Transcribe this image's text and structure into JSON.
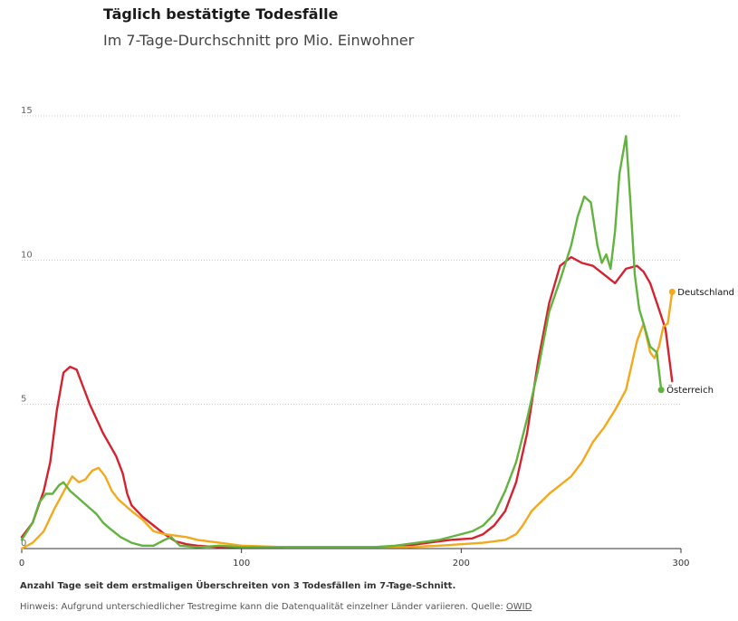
{
  "title": "Täglich bestätigte Todesfälle",
  "subtitle": "Im 7-Tage-Durchschnitt pro Mio. Einwohner",
  "footer": {
    "xlabel": "Anzahl Tage seit dem erstmaligen Überschreiten von 3 Todesfällen im 7-Tage-Schnitt.",
    "note": "Hinweis: Aufgrund unterschiedlicher Testregime kann die Datenqualität einzelner Länder variieren. Quelle: ",
    "source": "OWID"
  },
  "chart_data": {
    "type": "line",
    "xlim": [
      0,
      300
    ],
    "ylim": [
      0,
      15
    ],
    "x_ticks": [
      0,
      100,
      200,
      300
    ],
    "y_ticks": [
      0,
      5,
      10,
      15
    ],
    "grid": "horizontal-dotted",
    "series": [
      {
        "color": "#d42330",
        "points": [
          [
            0,
            0.4
          ],
          [
            5,
            0.9
          ],
          [
            10,
            2.0
          ],
          [
            13,
            3.0
          ],
          [
            16,
            4.8
          ],
          [
            19,
            6.1
          ],
          [
            22,
            6.3
          ],
          [
            25,
            6.2
          ],
          [
            28,
            5.6
          ],
          [
            31,
            5.0
          ],
          [
            34,
            4.5
          ],
          [
            37,
            4.0
          ],
          [
            40,
            3.6
          ],
          [
            43,
            3.2
          ],
          [
            46,
            2.6
          ],
          [
            48,
            1.9
          ],
          [
            50,
            1.5
          ],
          [
            55,
            1.1
          ],
          [
            60,
            0.8
          ],
          [
            65,
            0.5
          ],
          [
            70,
            0.25
          ],
          [
            75,
            0.15
          ],
          [
            80,
            0.1
          ],
          [
            90,
            0.05
          ],
          [
            100,
            0.05
          ],
          [
            120,
            0.05
          ],
          [
            140,
            0.05
          ],
          [
            160,
            0.05
          ],
          [
            175,
            0.1
          ],
          [
            185,
            0.2
          ],
          [
            195,
            0.3
          ],
          [
            205,
            0.35
          ],
          [
            210,
            0.5
          ],
          [
            215,
            0.8
          ],
          [
            220,
            1.3
          ],
          [
            225,
            2.3
          ],
          [
            230,
            4.0
          ],
          [
            235,
            6.5
          ],
          [
            240,
            8.5
          ],
          [
            245,
            9.8
          ],
          [
            250,
            10.1
          ],
          [
            255,
            9.9
          ],
          [
            260,
            9.8
          ],
          [
            265,
            9.5
          ],
          [
            270,
            9.2
          ],
          [
            275,
            9.7
          ],
          [
            280,
            9.8
          ],
          [
            283,
            9.6
          ],
          [
            286,
            9.2
          ],
          [
            290,
            8.3
          ],
          [
            293,
            7.6
          ],
          [
            296,
            5.8
          ]
        ]
      },
      {
        "name": "Deutschland",
        "color": "#f2a91c",
        "points": [
          [
            0,
            0.0
          ],
          [
            5,
            0.2
          ],
          [
            10,
            0.6
          ],
          [
            15,
            1.4
          ],
          [
            20,
            2.1
          ],
          [
            23,
            2.5
          ],
          [
            26,
            2.3
          ],
          [
            29,
            2.4
          ],
          [
            32,
            2.7
          ],
          [
            35,
            2.8
          ],
          [
            38,
            2.5
          ],
          [
            41,
            2.0
          ],
          [
            44,
            1.7
          ],
          [
            47,
            1.5
          ],
          [
            50,
            1.3
          ],
          [
            55,
            1.0
          ],
          [
            60,
            0.6
          ],
          [
            65,
            0.5
          ],
          [
            70,
            0.45
          ],
          [
            75,
            0.4
          ],
          [
            80,
            0.3
          ],
          [
            90,
            0.2
          ],
          [
            100,
            0.1
          ],
          [
            120,
            0.05
          ],
          [
            140,
            0.05
          ],
          [
            160,
            0.05
          ],
          [
            175,
            0.05
          ],
          [
            190,
            0.1
          ],
          [
            200,
            0.15
          ],
          [
            210,
            0.2
          ],
          [
            220,
            0.3
          ],
          [
            225,
            0.5
          ],
          [
            228,
            0.8
          ],
          [
            232,
            1.3
          ],
          [
            236,
            1.6
          ],
          [
            240,
            1.9
          ],
          [
            245,
            2.2
          ],
          [
            250,
            2.5
          ],
          [
            255,
            3.0
          ],
          [
            260,
            3.7
          ],
          [
            265,
            4.2
          ],
          [
            270,
            4.8
          ],
          [
            275,
            5.5
          ],
          [
            280,
            7.2
          ],
          [
            283,
            7.8
          ],
          [
            286,
            6.8
          ],
          [
            288,
            6.6
          ],
          [
            290,
            7.0
          ],
          [
            292,
            7.7
          ],
          [
            294,
            7.8
          ],
          [
            296,
            8.9
          ]
        ]
      },
      {
        "name": "Österreich",
        "color": "#62b33e",
        "points": [
          [
            0,
            0.3
          ],
          [
            5,
            0.9
          ],
          [
            8,
            1.6
          ],
          [
            11,
            1.9
          ],
          [
            14,
            1.9
          ],
          [
            17,
            2.2
          ],
          [
            19,
            2.3
          ],
          [
            22,
            2.0
          ],
          [
            25,
            1.8
          ],
          [
            28,
            1.6
          ],
          [
            31,
            1.4
          ],
          [
            34,
            1.2
          ],
          [
            37,
            0.9
          ],
          [
            40,
            0.7
          ],
          [
            45,
            0.4
          ],
          [
            50,
            0.2
          ],
          [
            55,
            0.1
          ],
          [
            60,
            0.1
          ],
          [
            65,
            0.3
          ],
          [
            68,
            0.4
          ],
          [
            72,
            0.1
          ],
          [
            80,
            0.05
          ],
          [
            90,
            0.1
          ],
          [
            100,
            0.05
          ],
          [
            120,
            0.05
          ],
          [
            140,
            0.05
          ],
          [
            160,
            0.05
          ],
          [
            170,
            0.1
          ],
          [
            180,
            0.2
          ],
          [
            190,
            0.3
          ],
          [
            200,
            0.5
          ],
          [
            205,
            0.6
          ],
          [
            210,
            0.8
          ],
          [
            215,
            1.2
          ],
          [
            220,
            2.0
          ],
          [
            225,
            3.0
          ],
          [
            230,
            4.5
          ],
          [
            235,
            6.2
          ],
          [
            240,
            8.2
          ],
          [
            245,
            9.3
          ],
          [
            250,
            10.5
          ],
          [
            253,
            11.5
          ],
          [
            256,
            12.2
          ],
          [
            259,
            12.0
          ],
          [
            262,
            10.5
          ],
          [
            264,
            9.9
          ],
          [
            266,
            10.2
          ],
          [
            268,
            9.7
          ],
          [
            270,
            11.0
          ],
          [
            272,
            13.0
          ],
          [
            275,
            14.3
          ],
          [
            277,
            12.0
          ],
          [
            279,
            9.5
          ],
          [
            281,
            8.3
          ],
          [
            283,
            7.8
          ],
          [
            286,
            7.0
          ],
          [
            289,
            6.8
          ],
          [
            291,
            5.5
          ]
        ]
      }
    ]
  }
}
